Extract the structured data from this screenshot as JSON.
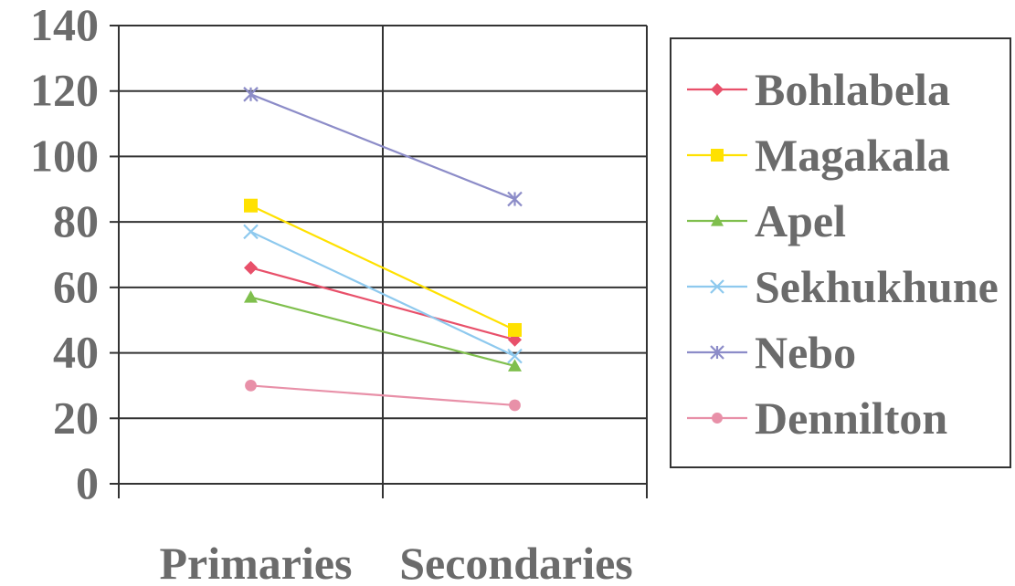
{
  "chart_data": {
    "type": "line",
    "categories": [
      "Primaries",
      "Secondaries"
    ],
    "yticks": [
      "0",
      "20",
      "40",
      "60",
      "80",
      "100",
      "120",
      "140"
    ],
    "ylim": [
      0,
      140
    ],
    "grid": true,
    "legend_position": "right",
    "series": [
      {
        "name": "Bohlabela",
        "values": [
          66,
          44
        ],
        "color": "#e8506a",
        "marker": "diamond"
      },
      {
        "name": "Magakala",
        "values": [
          85,
          47
        ],
        "color": "#ffe100",
        "marker": "square"
      },
      {
        "name": "Apel",
        "values": [
          57,
          36
        ],
        "color": "#7fbf4d",
        "marker": "triangle"
      },
      {
        "name": "Sekhukhune",
        "values": [
          77,
          39
        ],
        "color": "#8ec9ee",
        "marker": "x"
      },
      {
        "name": "Nebo",
        "values": [
          119,
          87
        ],
        "color": "#8c8cc8",
        "marker": "star"
      },
      {
        "name": "Dennilton",
        "values": [
          30,
          24
        ],
        "color": "#e890a8",
        "marker": "circle"
      }
    ]
  }
}
